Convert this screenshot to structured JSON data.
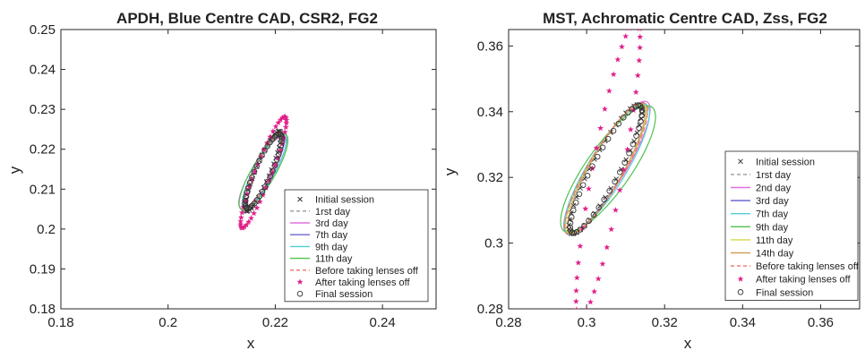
{
  "chart_data": [
    {
      "type": "scatter",
      "title": "APDH, Blue Centre CAD, CSR2, FG2",
      "xlabel": "x",
      "ylabel": "y",
      "xlim": [
        0.18,
        0.25
      ],
      "ylim": [
        0.18,
        0.25
      ],
      "xticks": [
        0.18,
        0.2,
        0.22,
        0.24
      ],
      "yticks": [
        0.18,
        0.19,
        0.2,
        0.21,
        0.22,
        0.23,
        0.24,
        0.25
      ],
      "xtick_labels": [
        "0.18",
        "0.2",
        "0.22",
        "0.24"
      ],
      "ytick_labels": [
        "0.18",
        "0.19",
        "0.2",
        "0.21",
        "0.22",
        "0.23",
        "0.24",
        "0.25"
      ],
      "legend_position": "bottom-right",
      "grid": false,
      "series": [
        {
          "name": "Initial session",
          "kind": "ellipse-points",
          "marker": "x",
          "color": "#333333",
          "ellipse": {
            "cx": 0.2177,
            "cy": 0.2145,
            "a": 0.0105,
            "b": 0.00145,
            "angle": 73
          }
        },
        {
          "name": "1rst day",
          "kind": "ellipse",
          "dash": "dash",
          "color": "#9a9a9a",
          "ellipse": {
            "cx": 0.2178,
            "cy": 0.2146,
            "a": 0.0102,
            "b": 0.0019,
            "angle": 70
          }
        },
        {
          "name": "3rd day",
          "kind": "ellipse",
          "dash": "solid",
          "color": "#e070e0",
          "ellipse": {
            "cx": 0.2176,
            "cy": 0.2142,
            "a": 0.0098,
            "b": 0.0021,
            "angle": 66
          }
        },
        {
          "name": "7th day",
          "kind": "ellipse",
          "dash": "solid",
          "color": "#6a6acc",
          "ellipse": {
            "cx": 0.2178,
            "cy": 0.2145,
            "a": 0.0101,
            "b": 0.0018,
            "angle": 69
          }
        },
        {
          "name": "9th day",
          "kind": "ellipse",
          "dash": "solid",
          "color": "#4fd0d6",
          "ellipse": {
            "cx": 0.218,
            "cy": 0.2146,
            "a": 0.01,
            "b": 0.002,
            "angle": 68
          }
        },
        {
          "name": "11th day",
          "kind": "ellipse",
          "dash": "solid",
          "color": "#4ec24e",
          "ellipse": {
            "cx": 0.2178,
            "cy": 0.2143,
            "a": 0.0103,
            "b": 0.0023,
            "angle": 67
          }
        },
        {
          "name": "Before taking lenses off",
          "kind": "ellipse",
          "dash": "dash",
          "color": "#f07070",
          "ellipse": {
            "cx": 0.2177,
            "cy": 0.2144,
            "a": 0.0101,
            "b": 0.0017,
            "angle": 70
          }
        },
        {
          "name": "After taking lenses off",
          "kind": "ellipse-points",
          "marker": "*",
          "color": "#e0208a",
          "ellipse": {
            "cx": 0.2178,
            "cy": 0.2142,
            "a": 0.0145,
            "b": 0.0016,
            "angle": 74
          }
        },
        {
          "name": "Final session",
          "kind": "ellipse-points",
          "marker": "o",
          "color": "#333333",
          "ellipse": {
            "cx": 0.2178,
            "cy": 0.2145,
            "a": 0.0098,
            "b": 0.0016,
            "angle": 72
          }
        }
      ]
    },
    {
      "type": "scatter",
      "title": "MST, Achromatic Centre CAD, Zss, FG2",
      "xlabel": "x",
      "ylabel": "y",
      "xlim": [
        0.28,
        0.37
      ],
      "ylim": [
        0.28,
        0.365
      ],
      "xticks": [
        0.28,
        0.3,
        0.32,
        0.34,
        0.36
      ],
      "yticks": [
        0.28,
        0.3,
        0.32,
        0.34,
        0.36
      ],
      "xtick_labels": [
        "0.28",
        "0.3",
        "0.32",
        "0.34",
        "0.36"
      ],
      "ytick_labels": [
        "0.28",
        "0.3",
        "0.32",
        "0.34",
        "0.36"
      ],
      "legend_position": "bottom-right",
      "grid": false,
      "series": [
        {
          "name": "Initial session",
          "kind": "ellipse-points",
          "marker": "x",
          "color": "#333333",
          "ellipse": {
            "cx": 0.3048,
            "cy": 0.3225,
            "a": 0.0215,
            "b": 0.0038,
            "angle": 66
          }
        },
        {
          "name": "1rst day",
          "kind": "ellipse",
          "dash": "dash",
          "color": "#9a9a9a",
          "ellipse": {
            "cx": 0.305,
            "cy": 0.3228,
            "a": 0.0222,
            "b": 0.0045,
            "angle": 64
          }
        },
        {
          "name": "2nd day",
          "kind": "ellipse",
          "dash": "solid",
          "color": "#e070e0",
          "ellipse": {
            "cx": 0.3052,
            "cy": 0.323,
            "a": 0.0225,
            "b": 0.0048,
            "angle": 63
          }
        },
        {
          "name": "3rd day",
          "kind": "ellipse",
          "dash": "solid",
          "color": "#5c5cc8",
          "ellipse": {
            "cx": 0.305,
            "cy": 0.3227,
            "a": 0.0222,
            "b": 0.0045,
            "angle": 64
          }
        },
        {
          "name": "7th day",
          "kind": "ellipse",
          "dash": "solid",
          "color": "#4fd0d6",
          "ellipse": {
            "cx": 0.3052,
            "cy": 0.3226,
            "a": 0.022,
            "b": 0.005,
            "angle": 63
          }
        },
        {
          "name": "9th day",
          "kind": "ellipse",
          "dash": "solid",
          "color": "#4ec24e",
          "ellipse": {
            "cx": 0.3055,
            "cy": 0.3225,
            "a": 0.022,
            "b": 0.006,
            "angle": 60
          }
        },
        {
          "name": "11th day",
          "kind": "ellipse",
          "dash": "solid",
          "color": "#d8d84a",
          "ellipse": {
            "cx": 0.305,
            "cy": 0.3226,
            "a": 0.0218,
            "b": 0.0046,
            "angle": 64
          }
        },
        {
          "name": "14th day",
          "kind": "ellipse",
          "dash": "solid",
          "color": "#d2a060",
          "ellipse": {
            "cx": 0.3051,
            "cy": 0.3227,
            "a": 0.0216,
            "b": 0.0044,
            "angle": 65
          }
        },
        {
          "name": "Before taking lenses off",
          "kind": "ellipse",
          "dash": "dash",
          "color": "#f07070",
          "ellipse": {
            "cx": 0.305,
            "cy": 0.3226,
            "a": 0.0223,
            "b": 0.0047,
            "angle": 64
          }
        },
        {
          "name": "After taking lenses off",
          "kind": "ellipse-points",
          "marker": "*",
          "color": "#e0208a",
          "ellipse": {
            "cx": 0.3055,
            "cy": 0.3225,
            "a": 0.046,
            "b": 0.004,
            "angle": 81
          }
        },
        {
          "name": "Final session",
          "kind": "ellipse-points",
          "marker": "o",
          "color": "#333333",
          "ellipse": {
            "cx": 0.305,
            "cy": 0.3225,
            "a": 0.0212,
            "b": 0.0036,
            "angle": 66
          }
        }
      ]
    }
  ]
}
